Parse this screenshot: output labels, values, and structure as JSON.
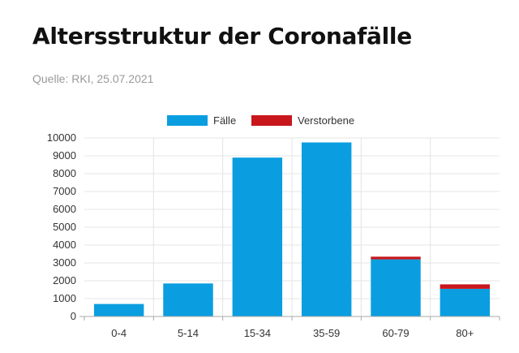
{
  "header": {
    "title": "Altersstruktur der Coronafälle",
    "source": "Quelle: RKI, 25.07.2021"
  },
  "colors": {
    "cases": "#0a9ee0",
    "deaths": "#c8161d",
    "grid": "#e4e4e4",
    "axis": "#aaaaaa",
    "text": "#333333"
  },
  "chart_data": {
    "type": "bar",
    "stacked": true,
    "categories": [
      "0-4",
      "5-14",
      "15-34",
      "35-59",
      "60-79",
      "80+"
    ],
    "series": [
      {
        "name": "Fälle",
        "color": "#0a9ee0",
        "values": [
          700,
          1850,
          8900,
          9750,
          3200,
          1550
        ]
      },
      {
        "name": "Verstorbene",
        "color": "#c8161d",
        "values": [
          0,
          0,
          0,
          0,
          150,
          250
        ]
      }
    ],
    "ylim": [
      0,
      10000
    ],
    "yticks": [
      0,
      1000,
      2000,
      3000,
      4000,
      5000,
      6000,
      7000,
      8000,
      9000,
      10000
    ],
    "legend_position": "top-center",
    "grid": true
  }
}
